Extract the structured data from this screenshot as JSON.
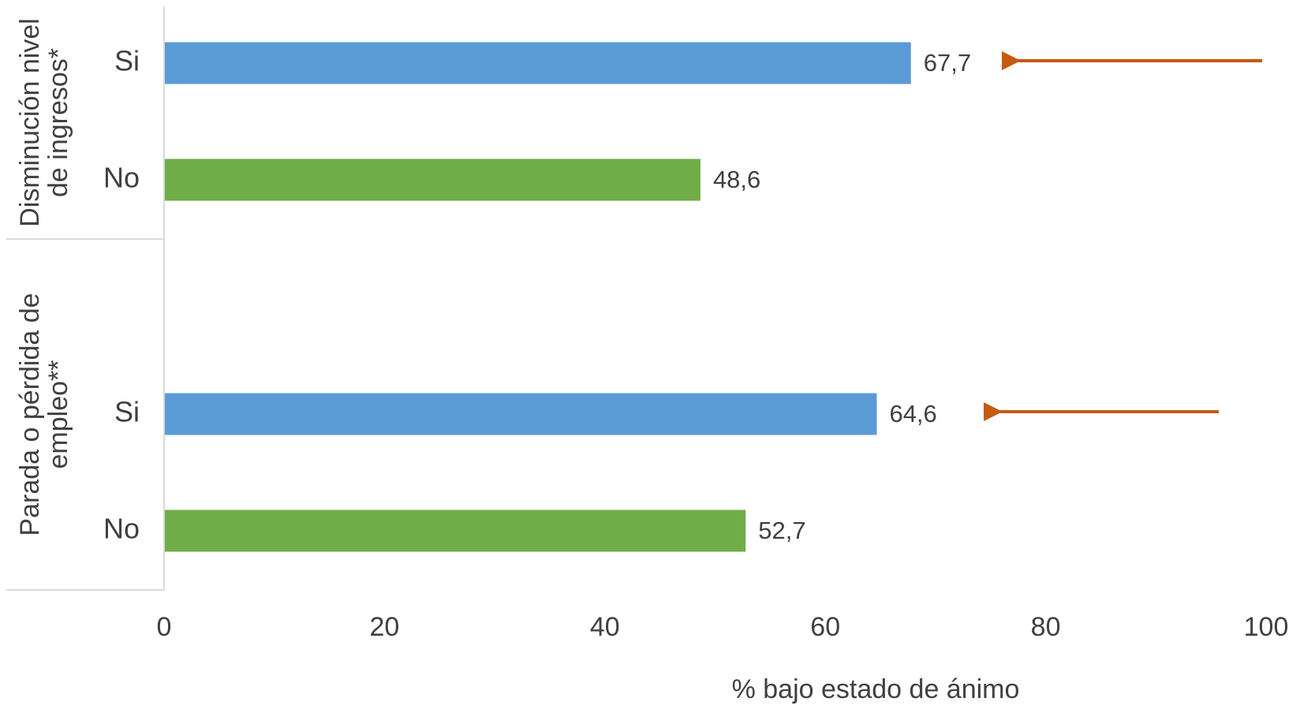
{
  "chart_data": {
    "type": "bar",
    "orientation": "horizontal",
    "title": "",
    "xlabel": "% bajo estado de ánimo",
    "ylabel": "",
    "xlim": [
      0,
      100
    ],
    "xticks": [
      0,
      20,
      40,
      60,
      80,
      100
    ],
    "tick_labels": [
      "0",
      "20",
      "40",
      "60",
      "80",
      "100"
    ],
    "grid": false,
    "legend": "none",
    "groups": [
      {
        "label": "Disminución nivel de ingresos*",
        "label_lines": [
          "Disminución nivel",
          "de ingresos*"
        ],
        "bars": [
          {
            "category": "Si",
            "value": 67.7,
            "value_label": "67,7",
            "color": "#5b9bd5",
            "arrow": true
          },
          {
            "category": "No",
            "value": 48.6,
            "value_label": "48,6",
            "color": "#70ad47",
            "arrow": false
          }
        ]
      },
      {
        "label": "Parada o pérdida de empleo**",
        "label_lines": [
          "Parada o pérdida de",
          "empleo**"
        ],
        "bars": [
          {
            "category": "Si",
            "value": 64.6,
            "value_label": "64,6",
            "color": "#5b9bd5",
            "arrow": true
          },
          {
            "category": "No",
            "value": 52.7,
            "value_label": "52,7",
            "color": "#70ad47",
            "arrow": false
          }
        ]
      }
    ],
    "colors": {
      "si": "#5b9bd5",
      "no": "#70ad47",
      "arrow": "#c55a11",
      "axis": "#d9d9d9",
      "text": "#404040"
    }
  }
}
